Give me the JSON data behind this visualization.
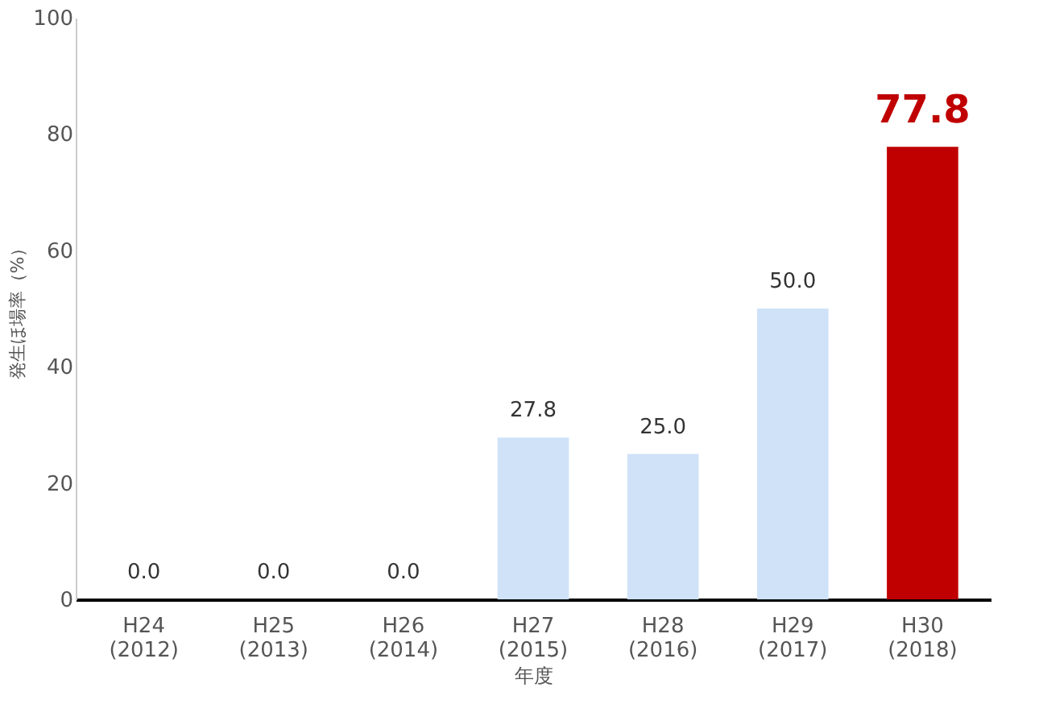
{
  "chart_data": {
    "type": "bar",
    "xlabel": "年度",
    "ylabel": "発生ほ場率（%）",
    "categories": [
      "H24\n(2012)",
      "H25\n(2013)",
      "H26\n(2014)",
      "H27\n(2015)",
      "H28\n(2016)",
      "H29\n(2017)",
      "H30\n(2018)"
    ],
    "values": [
      0.0,
      0.0,
      0.0,
      27.8,
      25.0,
      50.0,
      77.8
    ],
    "colors": [
      "#cfe2f7",
      "#cfe2f7",
      "#cfe2f7",
      "#cfe2f7",
      "#cfe2f7",
      "#cfe2f7",
      "#c00000"
    ],
    "value_labels": [
      "0.0",
      "0.0",
      "0.0",
      "27.8",
      "25.0",
      "50.0",
      "77.8"
    ],
    "ylim": [
      0,
      100
    ],
    "yticks": [
      0,
      20,
      40,
      60,
      80,
      100
    ],
    "grid": false
  }
}
